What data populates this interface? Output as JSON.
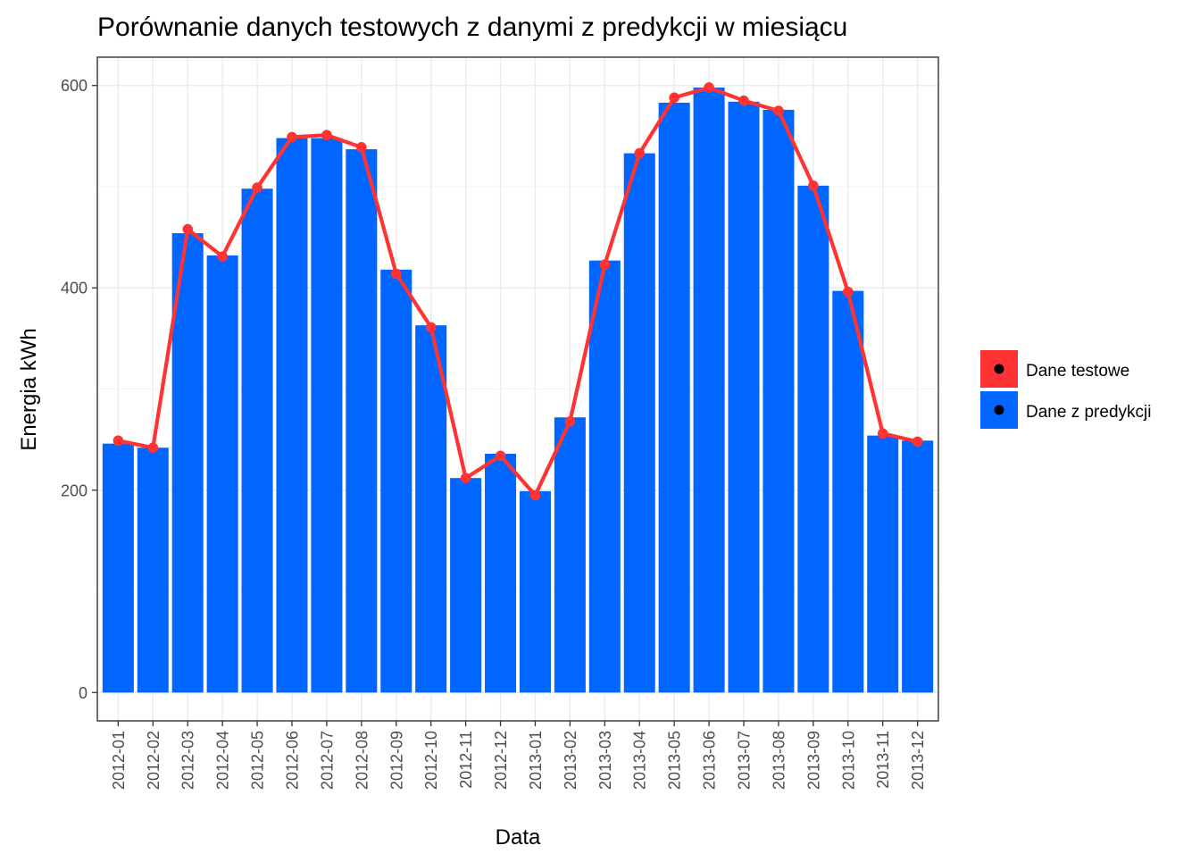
{
  "chart_data": {
    "type": "bar",
    "title": "Porównanie danych testowych z danymi z predykcji w miesiącu",
    "xlabel": "Data",
    "ylabel": "Energia kWh",
    "ylim": [
      -28,
      628
    ],
    "yticks": [
      0,
      200,
      400,
      600
    ],
    "grid": true,
    "legend_position": "right",
    "categories": [
      "2012-01",
      "2012-02",
      "2012-03",
      "2012-04",
      "2012-05",
      "2012-06",
      "2012-07",
      "2012-08",
      "2012-09",
      "2012-10",
      "2012-11",
      "2012-12",
      "2013-01",
      "2013-02",
      "2013-03",
      "2013-04",
      "2013-05",
      "2013-06",
      "2013-07",
      "2013-08",
      "2013-09",
      "2013-10",
      "2013-11",
      "2013-12"
    ],
    "series": [
      {
        "name": "Dane z predykcji",
        "type": "bar",
        "color": "#0066ff",
        "values": [
          246,
          242,
          454,
          432,
          498,
          548,
          548,
          537,
          418,
          363,
          212,
          236,
          199,
          272,
          427,
          533,
          583,
          598,
          584,
          576,
          501,
          397,
          254,
          249
        ]
      },
      {
        "name": "Dane testowe",
        "type": "line",
        "color": "#ff3333",
        "values": [
          249,
          242,
          458,
          431,
          499,
          549,
          551,
          539,
          414,
          361,
          212,
          234,
          195,
          268,
          423,
          533,
          588,
          598,
          585,
          575,
          501,
          396,
          256,
          248
        ]
      }
    ]
  }
}
